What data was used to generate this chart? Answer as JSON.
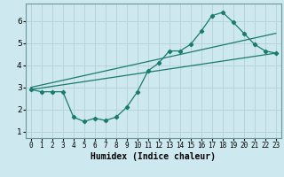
{
  "title": "",
  "xlabel": "Humidex (Indice chaleur)",
  "bg_color": "#cde8ee",
  "grid_color": "#b8d4da",
  "line_color": "#1a7a6e",
  "xlim": [
    -0.5,
    23.5
  ],
  "ylim": [
    0.7,
    6.8
  ],
  "xticks": [
    0,
    1,
    2,
    3,
    4,
    5,
    6,
    7,
    8,
    9,
    10,
    11,
    12,
    13,
    14,
    15,
    16,
    17,
    18,
    19,
    20,
    21,
    22,
    23
  ],
  "yticks": [
    1,
    2,
    3,
    4,
    5,
    6
  ],
  "line1_x": [
    0,
    1,
    2,
    3,
    4,
    5,
    6,
    7,
    8,
    9,
    10,
    11,
    12,
    13,
    14,
    15,
    16,
    17,
    18,
    19,
    20,
    21,
    22,
    23
  ],
  "line1_y": [
    2.9,
    2.8,
    2.8,
    2.8,
    1.65,
    1.45,
    1.6,
    1.5,
    1.65,
    2.1,
    2.8,
    3.75,
    4.1,
    4.65,
    4.65,
    4.95,
    5.55,
    6.25,
    6.4,
    5.95,
    5.45,
    4.95,
    4.65,
    4.55
  ],
  "line2_x": [
    0,
    23
  ],
  "line2_y": [
    2.9,
    4.55
  ],
  "line3_x": [
    0,
    23
  ],
  "line3_y": [
    3.0,
    5.45
  ]
}
